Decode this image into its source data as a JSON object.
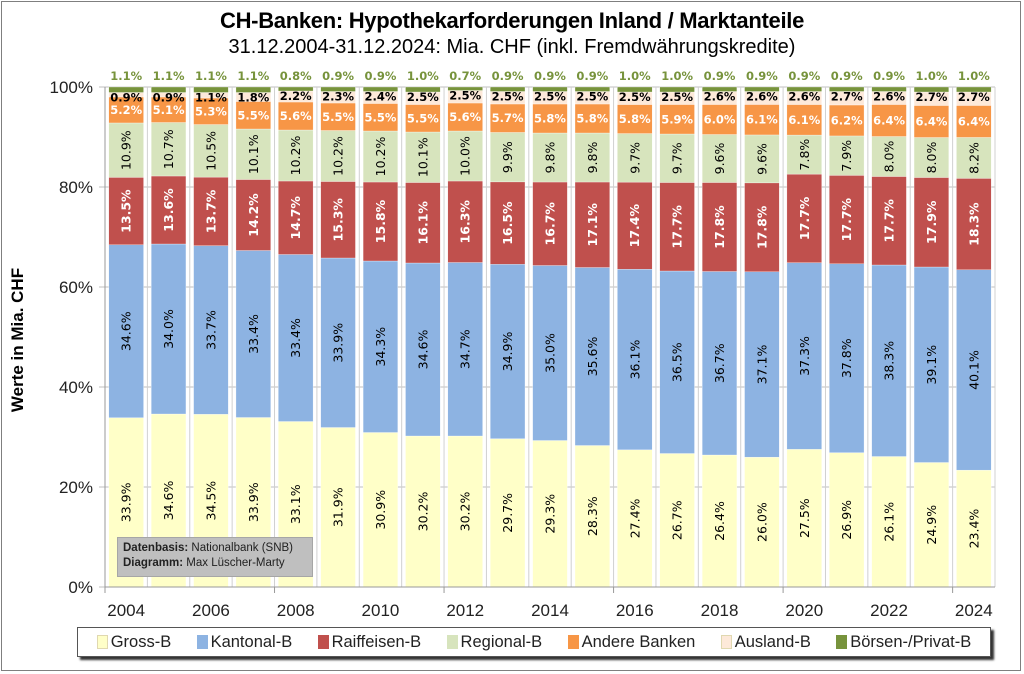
{
  "chart_data": {
    "type": "bar",
    "stacked": "percent",
    "title": "CH-Banken: Hypothekarforderungen  Inland / Marktanteile",
    "subtitle": "31.12.2004-31.12.2024: Mia. CHF (inkl. Fremdwährungskredite)",
    "xlabel": "",
    "ylabel": "Werte in Mia. CHF",
    "ylim": [
      0,
      100
    ],
    "yticks": [
      "0%",
      "20%",
      "40%",
      "60%",
      "80%",
      "100%"
    ],
    "xtick_labels": [
      "2004",
      "2006",
      "2008",
      "2010",
      "2012",
      "2014",
      "2016",
      "2018",
      "2020",
      "2022",
      "2024"
    ],
    "grid": true,
    "legend_position": "bottom",
    "categories": [
      "2004",
      "2005",
      "2006",
      "2007",
      "2008",
      "2009",
      "2010",
      "2011",
      "2012",
      "2013",
      "2014",
      "2015",
      "2016",
      "2017",
      "2018",
      "2019",
      "2020",
      "2021",
      "2022",
      "2023",
      "2024"
    ],
    "series": [
      {
        "name": "Gross-B",
        "color": "#ffffc8",
        "label_color": "#000000",
        "values": [
          33.9,
          34.6,
          34.5,
          33.9,
          33.1,
          31.9,
          30.9,
          30.2,
          30.2,
          29.7,
          29.3,
          28.3,
          27.4,
          26.7,
          26.4,
          26.0,
          27.5,
          26.9,
          26.1,
          24.9,
          23.4
        ]
      },
      {
        "name": "Kantonal-B",
        "color": "#8db3e2",
        "label_color": "#000000",
        "values": [
          34.6,
          34.0,
          33.7,
          33.4,
          33.4,
          33.9,
          34.3,
          34.6,
          34.7,
          34.9,
          35.0,
          35.6,
          36.1,
          36.5,
          36.7,
          37.1,
          37.3,
          37.8,
          38.3,
          39.1,
          40.1
        ]
      },
      {
        "name": "Raiffeisen-B",
        "color": "#c0504d",
        "label_color": "#ffffff",
        "values": [
          13.5,
          13.6,
          13.7,
          14.2,
          14.7,
          15.3,
          15.8,
          16.1,
          16.3,
          16.5,
          16.7,
          17.1,
          17.4,
          17.7,
          17.8,
          17.8,
          17.7,
          17.7,
          17.7,
          17.9,
          18.3
        ]
      },
      {
        "name": "Regional-B",
        "color": "#d7e4bd",
        "label_color": "#000000",
        "values": [
          10.9,
          10.7,
          10.5,
          10.1,
          10.2,
          10.2,
          10.2,
          10.1,
          10.0,
          9.9,
          9.8,
          9.8,
          9.7,
          9.7,
          9.6,
          9.6,
          7.8,
          7.9,
          8.0,
          8.0,
          8.2
        ]
      },
      {
        "name": "Andere Banken",
        "color": "#f79646",
        "label_color": "#ffffff",
        "values": [
          5.2,
          5.1,
          5.3,
          5.5,
          5.6,
          5.5,
          5.5,
          5.5,
          5.6,
          5.7,
          5.8,
          5.8,
          5.8,
          5.9,
          6.0,
          6.1,
          6.1,
          6.2,
          6.4,
          6.4,
          6.4
        ]
      },
      {
        "name": "Ausland-B",
        "color": "#fde9d9",
        "label_color": "#000000",
        "values": [
          0.9,
          0.9,
          1.1,
          1.8,
          2.2,
          2.3,
          2.4,
          2.5,
          2.5,
          2.5,
          2.5,
          2.5,
          2.5,
          2.5,
          2.6,
          2.6,
          2.6,
          2.7,
          2.6,
          2.7,
          2.7
        ]
      },
      {
        "name": "Börsen-/Privat-B",
        "color": "#77933c",
        "label_color": "#77933c",
        "values": [
          1.1,
          1.1,
          1.1,
          1.1,
          0.8,
          0.9,
          0.9,
          1.0,
          0.7,
          0.9,
          0.9,
          0.9,
          1.0,
          1.0,
          0.9,
          0.9,
          0.9,
          0.9,
          0.9,
          1.0,
          1.0
        ]
      }
    ]
  },
  "source_box": {
    "line1_label": "Datenbasis:",
    "line1_value": " Nationalbank (SNB)",
    "line2_label": "Diagramm:",
    "line2_value": " Max Lüscher-Marty"
  }
}
